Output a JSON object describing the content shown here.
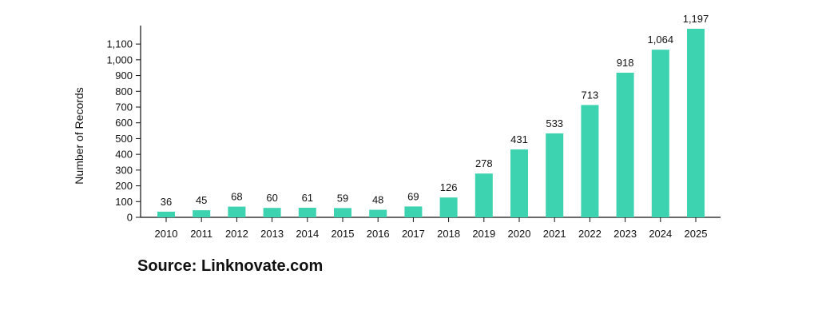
{
  "chart_data": {
    "type": "bar",
    "categories": [
      "2010",
      "2011",
      "2012",
      "2013",
      "2014",
      "2015",
      "2016",
      "2017",
      "2018",
      "2019",
      "2020",
      "2021",
      "2022",
      "2023",
      "2024",
      "2025"
    ],
    "values": [
      36,
      45,
      68,
      60,
      61,
      59,
      48,
      69,
      126,
      278,
      431,
      533,
      713,
      918,
      1064,
      1197
    ],
    "value_labels": [
      "36",
      "45",
      "68",
      "60",
      "61",
      "59",
      "48",
      "69",
      "126",
      "278",
      "431",
      "533",
      "713",
      "918",
      "1,064",
      "1,197"
    ],
    "ylabel": "Number of Records",
    "xlabel": "",
    "ylim": [
      0,
      1197
    ],
    "yticks": [
      0,
      100,
      200,
      300,
      400,
      500,
      600,
      700,
      800,
      900,
      1000,
      1100
    ],
    "ytick_labels": [
      "0",
      "100",
      "200",
      "300",
      "400",
      "500",
      "600",
      "700",
      "800",
      "900",
      "1,000",
      "1,100"
    ],
    "bar_color": "#3dd3b0",
    "grid": false
  },
  "source": "Source: Linknovate.com"
}
